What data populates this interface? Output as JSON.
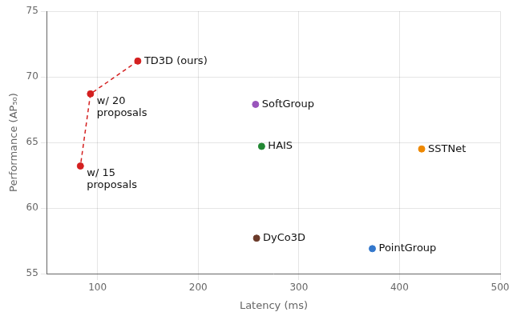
{
  "chart_data": {
    "type": "scatter",
    "xlabel": "Latency (ms)",
    "ylabel": "Performance (AP₅₀)",
    "xlim": [
      50,
      500
    ],
    "ylim": [
      55,
      75
    ],
    "xticks": [
      100,
      200,
      300,
      400,
      500
    ],
    "yticks": [
      55,
      60,
      65,
      70,
      75
    ],
    "grid": true,
    "series": [
      {
        "type": "line",
        "line_style": "dashed",
        "color": "#d42020",
        "x": [
          140,
          93,
          83
        ],
        "values": [
          71.2,
          68.7,
          63.2
        ]
      },
      {
        "type": "scatter",
        "marker": "circle",
        "x": [
          140,
          93,
          83,
          257,
          263,
          422,
          258,
          373
        ],
        "values": [
          71.2,
          68.7,
          63.2,
          67.9,
          64.7,
          64.5,
          57.7,
          56.9
        ],
        "colors": [
          "#d42020",
          "#d42020",
          "#d42020",
          "#9955bb",
          "#228833",
          "#ee8800",
          "#6b3a2a",
          "#3377cc"
        ],
        "annotations": [
          "TD3D (ours)",
          "w/ 20\nproposals",
          "w/ 15\nproposals",
          "SoftGroup",
          "HAIS",
          "SSTNet",
          "DyCo3D",
          "PointGroup"
        ]
      }
    ]
  }
}
